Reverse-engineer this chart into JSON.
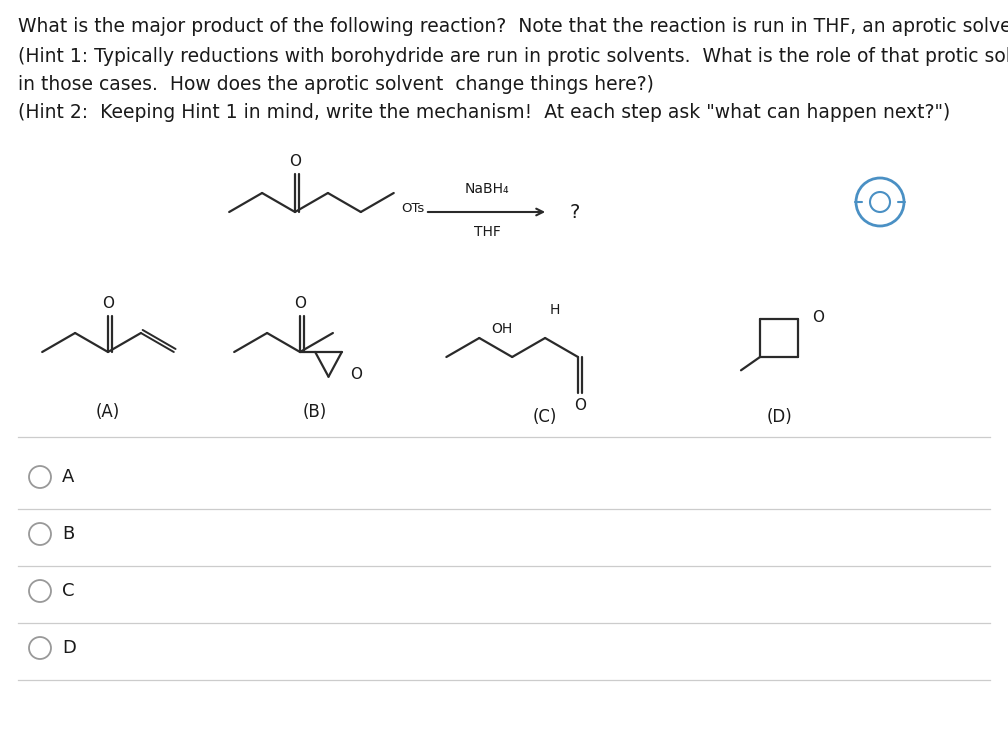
{
  "title_line1": "What is the major product of the following reaction?  Note that the reaction is run in THF, an aprotic solvent.",
  "hint1_line1": "(Hint 1: Typically reductions with borohydride are run in protic solvents.  What is the role of that protic solvent",
  "hint1_line2": "in those cases.  How does the aprotic solvent  change things here?)",
  "hint2": "(Hint 2:  Keeping Hint 1 in mind, write the mechanism!  At each step ask \"what can happen next?\")",
  "reagent_top": "NaBH₄",
  "solvent_top": "THF",
  "question_mark": "?",
  "label_A": "(A)",
  "label_B": "(B)",
  "label_C": "(C)",
  "label_D": "(D)",
  "choice_A": "A",
  "choice_B": "B",
  "choice_C": "C",
  "choice_D": "D",
  "bg_color": "#ffffff",
  "text_color": "#1a1a1a",
  "struct_color": "#2a2a2a",
  "line_color": "#cccccc",
  "font_size_text": 13.5,
  "font_size_label": 12,
  "font_size_choice": 13,
  "font_size_struct": 10,
  "font_size_subscript": 9
}
